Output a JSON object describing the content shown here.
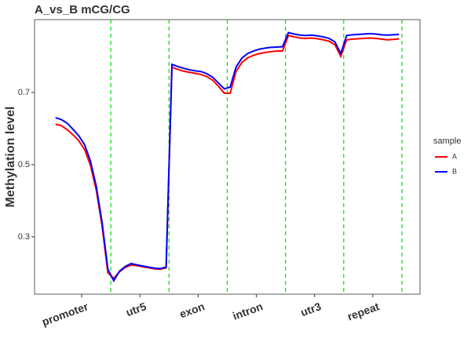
{
  "chart_data": {
    "type": "line",
    "title": "A_vs_B mCG/CG",
    "y_label": "Methylation level",
    "legend_title": "sample",
    "legend_position": "right",
    "x": [
      1,
      3,
      5,
      7,
      9,
      11,
      13,
      15,
      17,
      19,
      21,
      23,
      25,
      27,
      29,
      31,
      33,
      35,
      37,
      39,
      41,
      43,
      45,
      47,
      49,
      51,
      53,
      55,
      57,
      59,
      61,
      63,
      65,
      67,
      69,
      71,
      73,
      75,
      77,
      79,
      81,
      83,
      85,
      87,
      89,
      91,
      93,
      95,
      97,
      99,
      101,
      103,
      105,
      107,
      109,
      111,
      113,
      115,
      117,
      119
    ],
    "series": [
      {
        "name": "A",
        "color": "#ff0000",
        "values": [
          0.612,
          0.608,
          0.597,
          0.583,
          0.566,
          0.542,
          0.498,
          0.43,
          0.33,
          0.2,
          0.185,
          0.203,
          0.215,
          0.222,
          0.22,
          0.217,
          0.214,
          0.211,
          0.21,
          0.214,
          0.77,
          0.764,
          0.759,
          0.756,
          0.753,
          0.75,
          0.744,
          0.734,
          0.717,
          0.698,
          0.698,
          0.758,
          0.783,
          0.796,
          0.803,
          0.808,
          0.811,
          0.813,
          0.815,
          0.815,
          0.858,
          0.854,
          0.851,
          0.85,
          0.851,
          0.849,
          0.846,
          0.842,
          0.832,
          0.8,
          0.846,
          0.848,
          0.849,
          0.85,
          0.851,
          0.85,
          0.848,
          0.846,
          0.847,
          0.849
        ]
      },
      {
        "name": "B",
        "color": "#0000ff",
        "values": [
          0.63,
          0.625,
          0.615,
          0.598,
          0.58,
          0.555,
          0.51,
          0.44,
          0.34,
          0.21,
          0.178,
          0.205,
          0.218,
          0.226,
          0.222,
          0.219,
          0.216,
          0.213,
          0.212,
          0.216,
          0.778,
          0.772,
          0.767,
          0.763,
          0.76,
          0.758,
          0.752,
          0.742,
          0.726,
          0.71,
          0.715,
          0.77,
          0.795,
          0.808,
          0.815,
          0.82,
          0.823,
          0.825,
          0.826,
          0.827,
          0.866,
          0.862,
          0.859,
          0.858,
          0.859,
          0.857,
          0.854,
          0.85,
          0.84,
          0.808,
          0.858,
          0.86,
          0.861,
          0.862,
          0.863,
          0.862,
          0.86,
          0.859,
          0.86,
          0.861
        ]
      }
    ],
    "xlim": [
      -6.2,
      126.2
    ],
    "xticks": [
      {
        "value": 10,
        "label": "promoter"
      },
      {
        "value": 30,
        "label": "utr5"
      },
      {
        "value": 50,
        "label": "exon"
      },
      {
        "value": 70,
        "label": "intron"
      },
      {
        "value": 90,
        "label": "utr3"
      },
      {
        "value": 110,
        "label": "repeat"
      }
    ],
    "vlines": [
      20,
      40,
      60,
      80,
      100,
      120
    ],
    "vline_color": "#00dd00",
    "ylim": [
      0.141,
      0.902
    ],
    "yticks": [
      0.3,
      0.5,
      0.7
    ],
    "grid": false
  }
}
